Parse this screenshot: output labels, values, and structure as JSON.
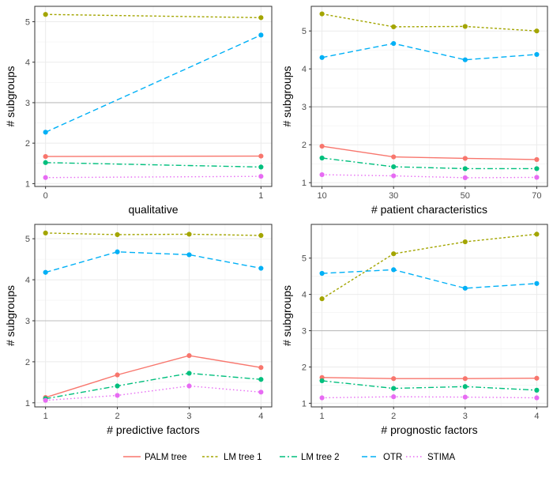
{
  "chart_data": {
    "type": "line",
    "ylabel": "# subgroups",
    "series_styles": [
      {
        "name": "PALM tree",
        "color": "#F8766D",
        "dash": ""
      },
      {
        "name": "LM tree 1",
        "color": "#A3A500",
        "dash": "3,2.5"
      },
      {
        "name": "LM tree 2",
        "color": "#00BF7D",
        "dash": "7,3,2,3"
      },
      {
        "name": "OTR",
        "color": "#00B0F6",
        "dash": "7,4"
      },
      {
        "name": "STIMA",
        "color": "#E76BF3",
        "dash": "1.5,3"
      }
    ],
    "legend": {
      "position": "bottom",
      "entries": [
        "PALM tree",
        "LM tree 1",
        "LM tree 2",
        "OTR",
        "STIMA"
      ]
    },
    "panels": [
      {
        "xlabel": "qualitative",
        "x": [
          0,
          1
        ],
        "x_ticks": [
          "0",
          "1"
        ],
        "xlim": [
          -0.05,
          1.05
        ],
        "ylim": [
          0.93,
          5.38
        ],
        "y_ticks": [
          1,
          2,
          3,
          4,
          5
        ],
        "series": [
          {
            "name": "PALM tree",
            "values": [
              1.67,
              1.68
            ]
          },
          {
            "name": "LM tree 1",
            "values": [
              5.18,
              5.1
            ]
          },
          {
            "name": "LM tree 2",
            "values": [
              1.52,
              1.41
            ]
          },
          {
            "name": "OTR",
            "values": [
              2.27,
              4.67
            ]
          },
          {
            "name": "STIMA",
            "values": [
              1.15,
              1.18
            ]
          }
        ]
      },
      {
        "xlabel": "# patient characteristics",
        "x": [
          10,
          30,
          50,
          70
        ],
        "x_ticks": [
          "10",
          "30",
          "50",
          "70"
        ],
        "xlim": [
          7,
          73
        ],
        "ylim": [
          0.9,
          5.65
        ],
        "y_ticks": [
          1,
          2,
          3,
          4,
          5
        ],
        "series": [
          {
            "name": "PALM tree",
            "values": [
              1.96,
              1.68,
              1.64,
              1.61
            ]
          },
          {
            "name": "LM tree 1",
            "values": [
              5.45,
              5.11,
              5.12,
              5.0
            ]
          },
          {
            "name": "LM tree 2",
            "values": [
              1.65,
              1.42,
              1.37,
              1.37
            ]
          },
          {
            "name": "OTR",
            "values": [
              4.3,
              4.67,
              4.24,
              4.38
            ]
          },
          {
            "name": "STIMA",
            "values": [
              1.21,
              1.18,
              1.13,
              1.14
            ]
          }
        ]
      },
      {
        "xlabel": "# predictive factors",
        "x": [
          1,
          2,
          3,
          4
        ],
        "x_ticks": [
          "1",
          "2",
          "3",
          "4"
        ],
        "xlim": [
          0.85,
          4.15
        ],
        "ylim": [
          0.9,
          5.35
        ],
        "y_ticks": [
          1,
          2,
          3,
          4,
          5
        ],
        "series": [
          {
            "name": "PALM tree",
            "values": [
              1.13,
              1.68,
              2.15,
              1.86
            ]
          },
          {
            "name": "LM tree 1",
            "values": [
              5.14,
              5.1,
              5.11,
              5.08
            ]
          },
          {
            "name": "LM tree 2",
            "values": [
              1.1,
              1.41,
              1.72,
              1.57
            ]
          },
          {
            "name": "OTR",
            "values": [
              4.18,
              4.68,
              4.61,
              4.28
            ]
          },
          {
            "name": "STIMA",
            "values": [
              1.06,
              1.18,
              1.41,
              1.26
            ]
          }
        ]
      },
      {
        "xlabel": "# prognostic factors",
        "x": [
          1,
          2,
          3,
          4
        ],
        "x_ticks": [
          "1",
          "2",
          "3",
          "4"
        ],
        "xlim": [
          0.85,
          4.15
        ],
        "ylim": [
          0.9,
          5.93
        ],
        "y_ticks": [
          1,
          2,
          3,
          4,
          5
        ],
        "series": [
          {
            "name": "PALM tree",
            "values": [
              1.71,
              1.68,
              1.68,
              1.69
            ]
          },
          {
            "name": "LM tree 1",
            "values": [
              3.88,
              5.12,
              5.45,
              5.66
            ]
          },
          {
            "name": "LM tree 2",
            "values": [
              1.62,
              1.41,
              1.46,
              1.36
            ]
          },
          {
            "name": "OTR",
            "values": [
              4.58,
              4.68,
              4.17,
              4.3
            ]
          },
          {
            "name": "STIMA",
            "values": [
              1.15,
              1.18,
              1.17,
              1.15
            ]
          }
        ]
      }
    ]
  }
}
